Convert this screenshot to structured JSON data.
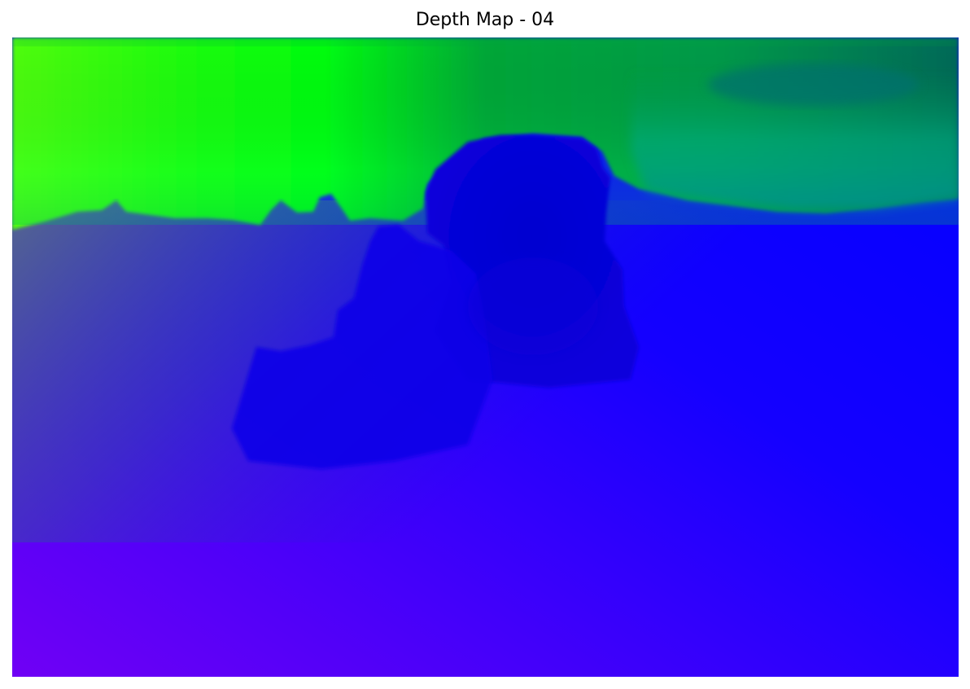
{
  "figure": {
    "title": "Depth Map - 04"
  },
  "colors": {
    "background": "#ffffff",
    "near_green": "#00ff10",
    "sky_dark_green": "#008a40",
    "mid_teal": "#0a7a8a",
    "mid_blue": "#1028e8",
    "far_blue": "#0000ff",
    "foreground_violet": "#6a00f8",
    "object_dark_blue": "#0000cc"
  }
}
